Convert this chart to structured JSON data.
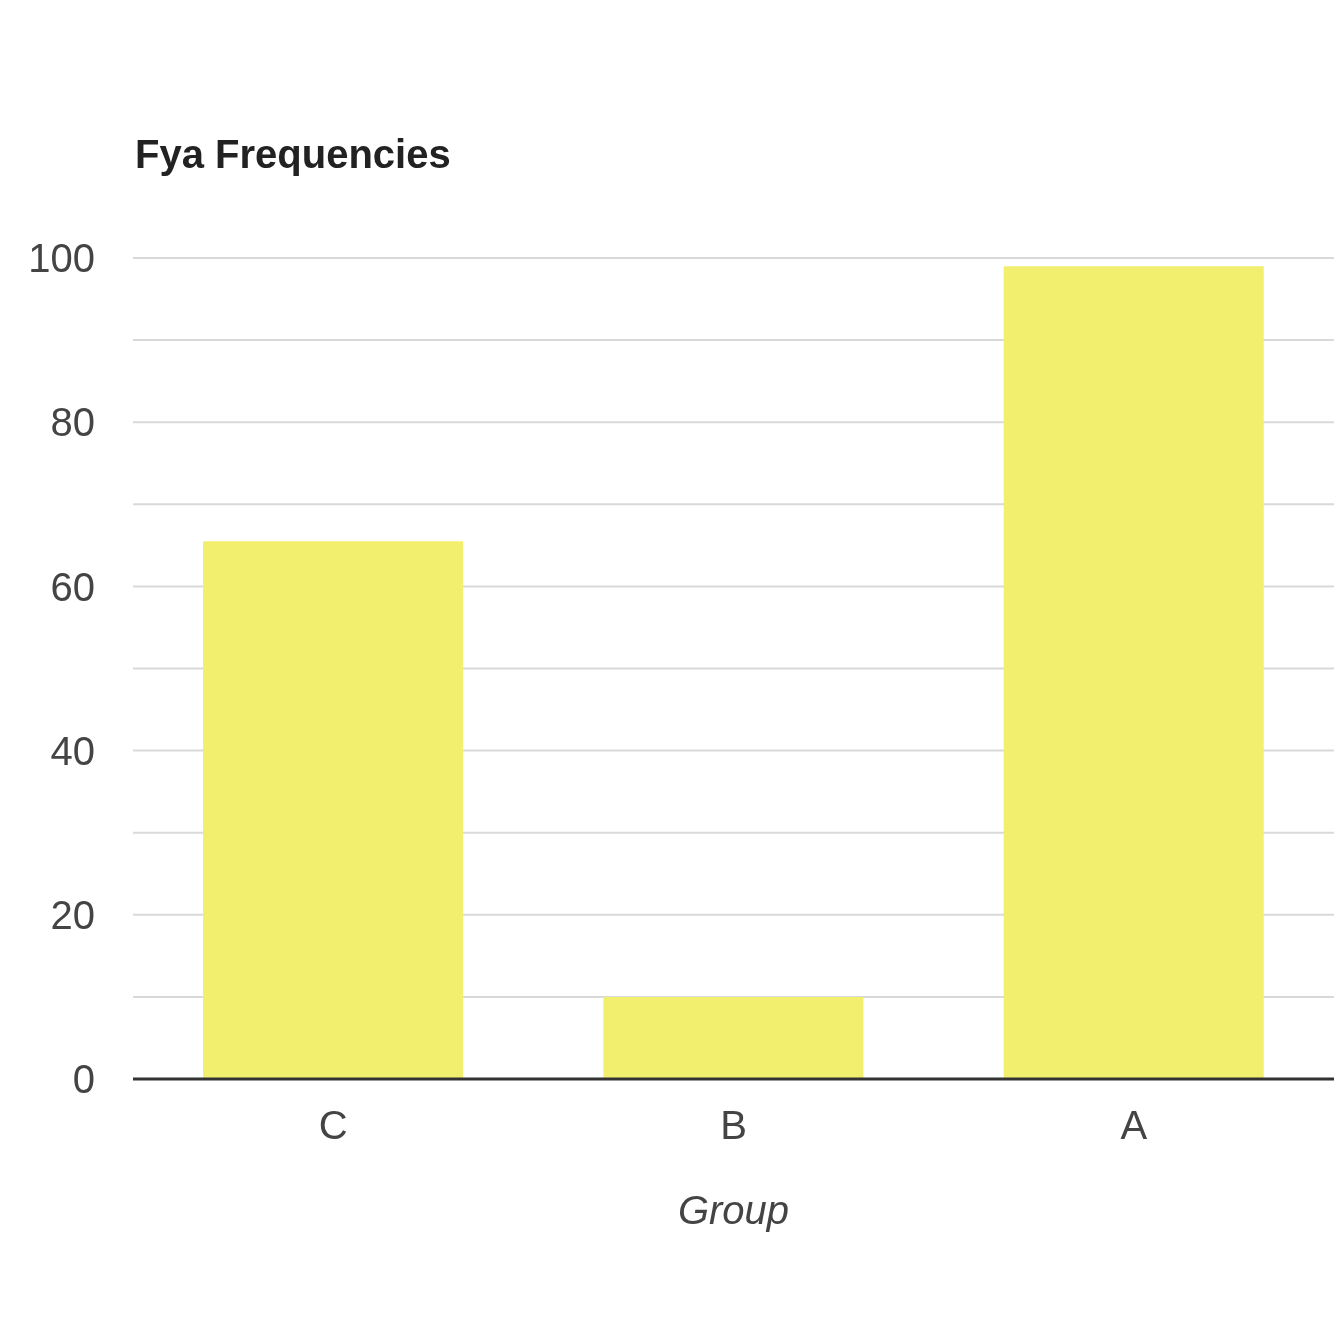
{
  "chart_data": {
    "type": "bar",
    "title": "Fya Frequencies",
    "xlabel": "Group",
    "categories": [
      "C",
      "B",
      "A"
    ],
    "values": [
      65.5,
      10,
      99
    ],
    "color": "#f2ef6e",
    "ylim": [
      0,
      100
    ],
    "yticks": [
      0,
      {
        "value": 10,
        "label": null
      },
      20,
      {
        "value": 30,
        "label": null
      },
      40,
      {
        "value": 50,
        "label": null
      },
      60,
      {
        "value": 70,
        "label": null
      },
      80,
      {
        "value": 90,
        "label": null
      },
      100
    ],
    "grid": "y",
    "legend": false
  }
}
